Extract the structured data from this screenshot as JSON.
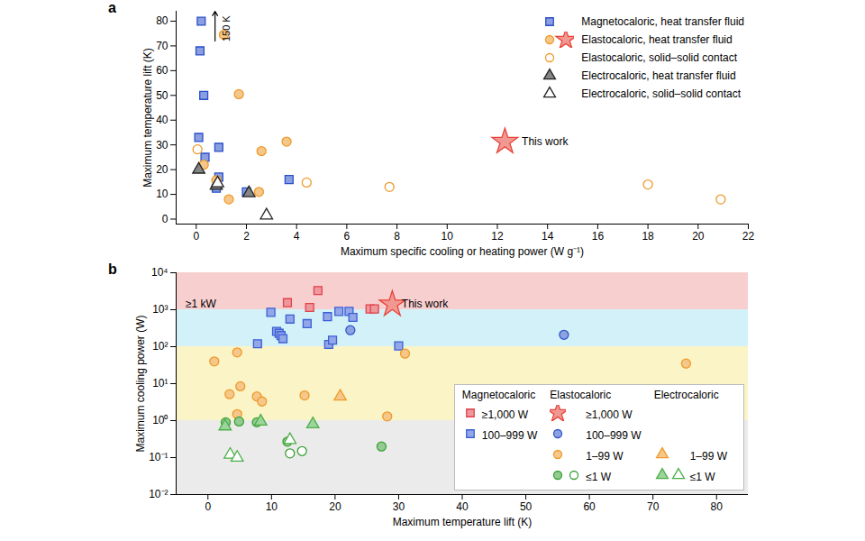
{
  "chart_data": [
    {
      "panel": "a",
      "type": "scatter",
      "xlabel": "Maximum specific cooling or heating power (W g⁻¹)",
      "ylabel": "Maximum temperature lift (K)",
      "xlim": [
        -0.8,
        22
      ],
      "ylim": [
        -2,
        84
      ],
      "xticks": [
        0,
        2,
        4,
        6,
        8,
        10,
        12,
        14,
        16,
        18,
        20,
        22
      ],
      "yticks": [
        0,
        10,
        20,
        30,
        40,
        50,
        60,
        70,
        80
      ],
      "legend": "top-right",
      "series": [
        {
          "name": "Magnetocaloric, heat transfer fluid",
          "color": "#2a4fc9",
          "marker": "square",
          "x": [
            0.2,
            0.15,
            0.3,
            0.1,
            0.35,
            0.9,
            0.9,
            0.8,
            2.0,
            3.7
          ],
          "values": [
            80,
            68,
            50,
            33,
            25,
            29,
            17,
            12.5,
            11,
            16
          ]
        },
        {
          "name": "Elastocaloric, heat transfer fluid",
          "color": "#ee9a2a",
          "marker": "circle",
          "x": [
            1.1,
            1.7,
            2.6,
            3.6,
            0.3,
            0.8,
            1.3,
            2.5
          ],
          "values": [
            74.5,
            50.5,
            27.5,
            31.3,
            22,
            15.7,
            8,
            11
          ]
        },
        {
          "name": "Elastocaloric, heat transfer fluid",
          "color": "#e8443a",
          "marker": "star",
          "x": [
            12.3
          ],
          "values": [
            31.3
          ]
        },
        {
          "name": "Elastocaloric, solid–solid contact",
          "color": "#ee9a2a",
          "marker": "circle-open",
          "x": [
            0.05,
            4.4,
            7.7,
            18.0,
            20.9
          ],
          "values": [
            28.2,
            14.8,
            13,
            14,
            8
          ]
        },
        {
          "name": "Electrocaloric, heat transfer fluid",
          "color": "#222222",
          "marker": "triangle",
          "x": [
            0.1,
            0.8,
            2.1
          ],
          "values": [
            20,
            13.5,
            10.5
          ]
        },
        {
          "name": "Electrocaloric, solid–solid contact",
          "color": "#222222",
          "marker": "triangle-open",
          "x": [
            0.85,
            2.8
          ],
          "values": [
            14.5,
            1.5
          ]
        }
      ],
      "annotations": [
        {
          "text": "This work",
          "x": 12.9,
          "y": 31.3
        },
        {
          "text": "150 K",
          "x": 1.2,
          "y": 77,
          "arrow": {
            "x": 0.75,
            "y1": 72,
            "y2": 84
          }
        }
      ]
    },
    {
      "panel": "b",
      "type": "scatter",
      "xlabel": "Maximum temperature lift (K)",
      "ylabel": "Maximum cooling power (W)",
      "log": "y",
      "xlim": [
        -5,
        85
      ],
      "ylim": [
        0.01,
        10000
      ],
      "xticks": [
        0,
        10,
        20,
        30,
        40,
        50,
        60,
        70,
        80
      ],
      "yticks": [
        {
          "value": 0.01,
          "label": "10⁻²"
        },
        {
          "value": 0.1,
          "label": "10⁻¹"
        },
        {
          "value": 1,
          "label": "10⁰"
        },
        {
          "value": 10,
          "label": "10¹"
        },
        {
          "value": 100,
          "label": "10²"
        },
        {
          "value": 1000,
          "label": "10³"
        },
        {
          "value": 10000,
          "label": "10⁴"
        }
      ],
      "legend": "bottom-right",
      "bands": [
        {
          "from": 1000,
          "to": 10000,
          "color": "#f8cfcf"
        },
        {
          "from": 100,
          "to": 1000,
          "color": "#d3f1f8"
        },
        {
          "from": 1,
          "to": 100,
          "color": "#fbf4c6"
        },
        {
          "from": 0.01,
          "to": 1,
          "color": "#ebebeb"
        }
      ],
      "series": [
        {
          "group": "Magnetocaloric",
          "name": "≥1,000 W",
          "color": "#e0424b",
          "marker": "square",
          "x": [
            12.5,
            16.0,
            17.3,
            25.5,
            26.2
          ],
          "values": [
            1550,
            1150,
            3300,
            1050,
            1050
          ]
        },
        {
          "group": "Magnetocaloric",
          "name": "100–999 W",
          "color": "#3b5fd6",
          "marker": "square",
          "x": [
            7.8,
            9.9,
            10.8,
            11.2,
            11.5,
            11.8,
            12.9,
            15.6,
            18.8,
            19.0,
            19.6,
            20.6,
            22.2,
            22.8,
            30.0
          ],
          "values": [
            120,
            850,
            260,
            230,
            200,
            165,
            560,
            420,
            650,
            115,
            150,
            900,
            900,
            620,
            105
          ]
        },
        {
          "group": "Elastocaloric",
          "name": "≥1,000 W",
          "color": "#e8443a",
          "marker": "star",
          "x": [
            29.0
          ],
          "values": [
            1400
          ]
        },
        {
          "group": "Elastocaloric",
          "name": "100–999 W",
          "color": "#2f56c9",
          "marker": "circle",
          "x": [
            22.4,
            56.0
          ],
          "values": [
            280,
            210
          ]
        },
        {
          "group": "Elastocaloric",
          "name": "1–99 W",
          "color": "#ee9a2a",
          "marker": "circle",
          "x": [
            1.0,
            4.6,
            5.1,
            3.4,
            4.6,
            7.7,
            8.5,
            15.2,
            28.2,
            31.0,
            75.2
          ],
          "values": [
            40,
            70,
            8.5,
            5.2,
            1.5,
            4.5,
            3.3,
            4.8,
            1.3,
            65,
            35
          ]
        },
        {
          "group": "Elastocaloric",
          "name": "≤1 W",
          "color": "#3aa035",
          "marker": "circle",
          "x": [
            2.8,
            4.9,
            7.7,
            12.5,
            27.3
          ],
          "values": [
            0.9,
            0.95,
            0.9,
            0.27,
            0.2
          ]
        },
        {
          "group": "Elastocaloric",
          "name": "≤1 W",
          "color": "#3aa035",
          "marker": "circle-open",
          "x": [
            12.9,
            14.8
          ],
          "values": [
            0.13,
            0.15
          ]
        },
        {
          "group": "Electrocaloric",
          "name": "1–99 W",
          "color": "#ee9a2a",
          "marker": "triangle",
          "x": [
            20.8
          ],
          "values": [
            4.5
          ]
        },
        {
          "group": "Electrocaloric",
          "name": "≤1 W",
          "color": "#4cb04a",
          "marker": "triangle",
          "x": [
            2.7,
            8.3,
            16.5
          ],
          "values": [
            0.7,
            0.95,
            0.8
          ]
        },
        {
          "group": "Electrocaloric",
          "name": "≤1 W",
          "color": "#4cb04a",
          "marker": "triangle-open",
          "x": [
            3.5,
            4.6,
            12.9
          ],
          "values": [
            0.12,
            0.1,
            0.3
          ]
        }
      ],
      "annotations": [
        {
          "text": "≥1 kW",
          "x": -3.8,
          "y": 1400
        },
        {
          "text": "This work",
          "x": 30.2,
          "y": 1450
        }
      ]
    }
  ]
}
